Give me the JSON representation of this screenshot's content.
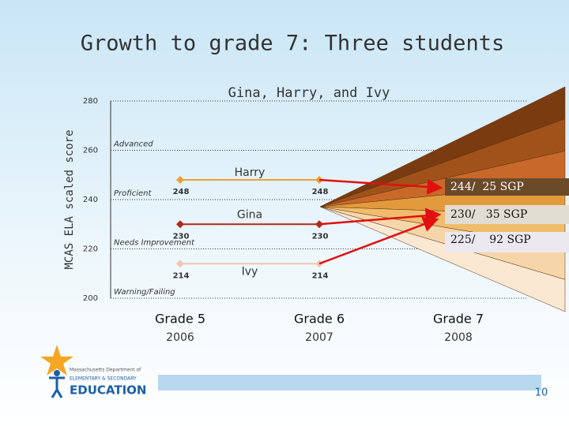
{
  "slide": {
    "title": "Growth to grade 7: Three students",
    "logo_lines": [
      "Massachusetts Department of",
      "ELEMENTARY & SECONDARY",
      "EDUCATION"
    ],
    "page_number": "10"
  },
  "chart_data": {
    "type": "line",
    "title": "Gina, Harry, and Ivy",
    "y_label": "MCAS ELA scaled score",
    "categories": [
      "Grade 5",
      "Grade 6",
      "Grade 7"
    ],
    "category_years": [
      "2006",
      "2007",
      "2008"
    ],
    "series": [
      {
        "name": "Harry",
        "color": "#f0a030",
        "values": [
          248,
          248,
          null
        ]
      },
      {
        "name": "Gina",
        "color": "#b02a1a",
        "values": [
          230,
          230,
          null
        ]
      },
      {
        "name": "Ivy",
        "color": "#f4c4b0",
        "values": [
          214,
          214,
          null
        ]
      }
    ],
    "ylim": [
      200,
      280
    ],
    "yticks": [
      200,
      220,
      240,
      260,
      280
    ],
    "grid": true,
    "level_labels": [
      "Advanced",
      "Proficient",
      "Needs Improvement",
      "Warning/Failing"
    ],
    "annotations": [
      "244/  25 SGP",
      "230/   35 SGP",
      "225/    92 SGP"
    ]
  }
}
